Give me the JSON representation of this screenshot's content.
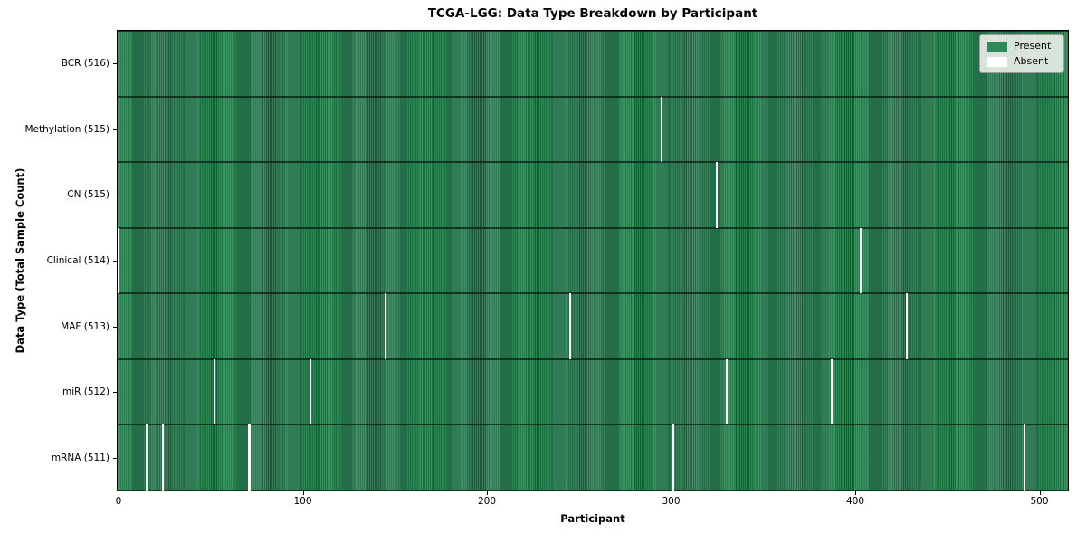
{
  "title": "TCGA-LGG: Data Type Breakdown by Participant",
  "chart_data": {
    "type": "heatmap",
    "title": "TCGA-LGG: Data Type Breakdown by Participant",
    "xlabel": "Participant",
    "ylabel": "Data Type (Total Sample Count)",
    "x_ticks": [
      0,
      100,
      200,
      300,
      400,
      500
    ],
    "n_participants": 516,
    "xlim": [
      0,
      516
    ],
    "grid": false,
    "legend": {
      "position": "upper right",
      "entries": [
        {
          "label": "Present",
          "color": "#2e8b57"
        },
        {
          "label": "Absent",
          "color": "#ffffff"
        }
      ]
    },
    "colors": {
      "present": "#2e8b57",
      "present_edge": "#1e5e3e",
      "absent": "#ffffff",
      "row_divider": "#16301f",
      "spine": "#000000"
    },
    "rows": [
      {
        "slug": "bcr",
        "label": "BCR (516)",
        "data_type": "BCR",
        "total_samples": 516,
        "absent_participants": []
      },
      {
        "slug": "methylation",
        "label": "Methylation (515)",
        "data_type": "Methylation",
        "total_samples": 515,
        "absent_participants": [
          295
        ]
      },
      {
        "slug": "cn",
        "label": "CN (515)",
        "data_type": "CN",
        "total_samples": 515,
        "absent_participants": [
          325
        ]
      },
      {
        "slug": "clinical",
        "label": "Clinical (514)",
        "data_type": "Clinical",
        "total_samples": 514,
        "absent_participants": [
          0,
          403
        ]
      },
      {
        "slug": "maf",
        "label": "MAF (513)",
        "data_type": "MAF",
        "total_samples": 513,
        "absent_participants": [
          145,
          245,
          428
        ]
      },
      {
        "slug": "mir",
        "label": "miR (512)",
        "data_type": "miR",
        "total_samples": 512,
        "absent_participants": [
          52,
          104,
          330,
          387
        ]
      },
      {
        "slug": "mrna",
        "label": "mRNA (511)",
        "data_type": "mRNA",
        "total_samples": 511,
        "absent_participants": [
          15,
          24,
          71,
          301,
          492
        ]
      }
    ]
  }
}
